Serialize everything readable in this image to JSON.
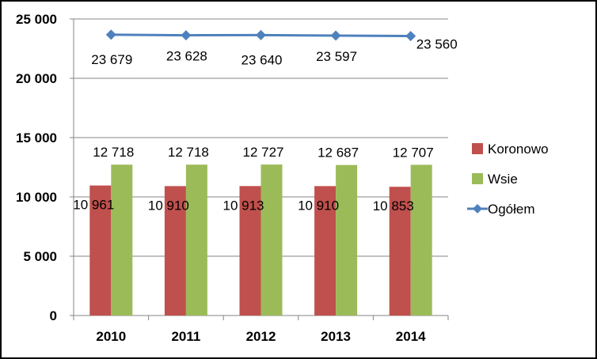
{
  "chart_data": {
    "type": "bar",
    "categories": [
      "2010",
      "2011",
      "2012",
      "2013",
      "2014"
    ],
    "series": [
      {
        "name": "Koronowo",
        "kind": "bar",
        "color": "#C0504D",
        "values": [
          10961,
          10910,
          10913,
          10910,
          10853
        ],
        "labels": [
          "10 961",
          "10 910",
          "10 913",
          "10 910",
          "10 853"
        ]
      },
      {
        "name": "Wsie",
        "kind": "bar",
        "color": "#9BBB59",
        "values": [
          12718,
          12718,
          12727,
          12687,
          12707
        ],
        "labels": [
          "12 718",
          "12 718",
          "12 727",
          "12 687",
          "12 707"
        ]
      },
      {
        "name": "Ogółem",
        "kind": "line",
        "color": "#4F81BD",
        "values": [
          23679,
          23628,
          23640,
          23597,
          23560
        ],
        "labels": [
          "23 679",
          "23 628",
          "23 640",
          "23 597",
          "23 560"
        ]
      }
    ],
    "ylim": [
      0,
      25000
    ],
    "yticks": [
      0,
      5000,
      10000,
      15000,
      20000,
      25000
    ],
    "ytick_labels": [
      "0",
      "5 000",
      "10 000",
      "15 000",
      "20 000",
      "25 000"
    ],
    "grid": true,
    "legend_position": "right",
    "title": "",
    "xlabel": "",
    "ylabel": ""
  }
}
